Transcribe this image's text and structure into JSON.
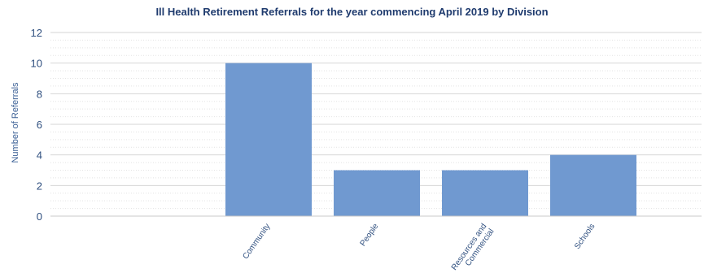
{
  "chart_data": {
    "type": "bar",
    "title": "Ill Health Retirement Referrals for the year commencing April 2019 by Division",
    "xlabel": "",
    "ylabel": "Number of Referrals",
    "categories": [
      "Community",
      "People",
      "Resources and Commercial",
      "Schools"
    ],
    "category_lines": [
      [
        "Community"
      ],
      [
        "People"
      ],
      [
        "Resources and",
        "Commercial"
      ],
      [
        "Schools"
      ]
    ],
    "values": [
      10,
      3,
      3,
      4
    ],
    "ylim": [
      0,
      12
    ],
    "yticks": [
      "0",
      "2",
      "4",
      "6",
      "8",
      "10",
      "12"
    ],
    "bar_color": "#7099d0",
    "grid": true
  }
}
